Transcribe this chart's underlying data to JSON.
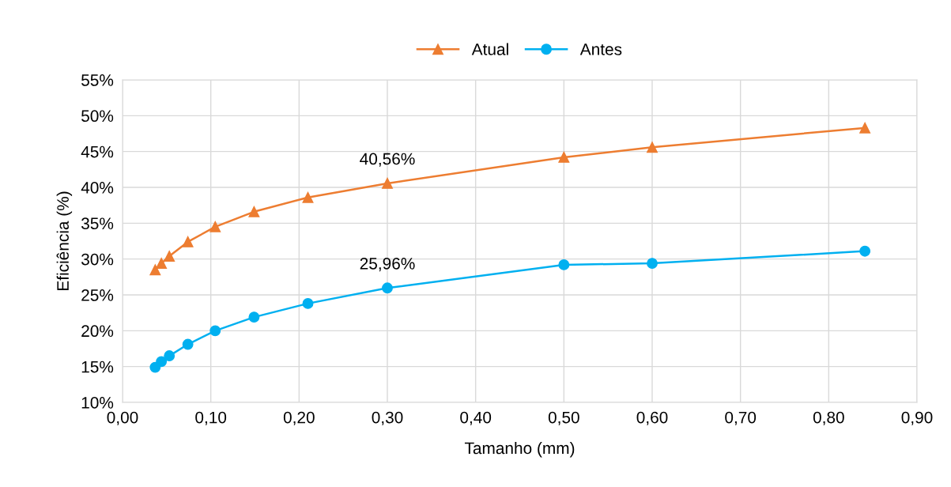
{
  "chart_data": {
    "type": "line",
    "xlabel": "Tamanho (mm)",
    "ylabel": "Eficiência (%)",
    "series": [
      {
        "name": "Atual",
        "color": "#ed7d31",
        "marker": "triangle",
        "x": [
          0.037,
          0.044,
          0.053,
          0.074,
          0.105,
          0.149,
          0.21,
          0.3,
          0.5,
          0.6,
          0.841
        ],
        "values": [
          28.5,
          29.4,
          30.4,
          32.4,
          34.5,
          36.6,
          38.6,
          40.56,
          44.2,
          45.6,
          48.3
        ]
      },
      {
        "name": "Antes",
        "color": "#00b0f0",
        "marker": "circle",
        "x": [
          0.037,
          0.044,
          0.053,
          0.074,
          0.105,
          0.149,
          0.21,
          0.3,
          0.5,
          0.6,
          0.841
        ],
        "values": [
          14.9,
          15.7,
          16.5,
          18.1,
          20.0,
          21.9,
          23.8,
          25.96,
          29.2,
          29.4,
          31.1
        ]
      }
    ],
    "annotations": [
      {
        "text": "40,56%",
        "x": 0.3,
        "y": 40.56
      },
      {
        "text": "25,96%",
        "x": 0.3,
        "y": 25.96
      }
    ],
    "xlim": [
      0,
      0.9
    ],
    "xticks": [
      {
        "value": 0,
        "label": "0,00"
      },
      {
        "value": 0.1,
        "label": "0,10"
      },
      {
        "value": 0.2,
        "label": "0,20"
      },
      {
        "value": 0.3,
        "label": "0,30"
      },
      {
        "value": 0.4,
        "label": "0,40"
      },
      {
        "value": 0.5,
        "label": "0,50"
      },
      {
        "value": 0.6,
        "label": "0,60"
      },
      {
        "value": 0.7,
        "label": "0,70"
      },
      {
        "value": 0.8,
        "label": "0,80"
      },
      {
        "value": 0.9,
        "label": "0,90"
      }
    ],
    "ylim": [
      10,
      55
    ],
    "yticks": [
      {
        "value": 10,
        "label": "10%"
      },
      {
        "value": 15,
        "label": "15%"
      },
      {
        "value": 20,
        "label": "20%"
      },
      {
        "value": 25,
        "label": "25%"
      },
      {
        "value": 30,
        "label": "30%"
      },
      {
        "value": 35,
        "label": "35%"
      },
      {
        "value": 40,
        "label": "40%"
      },
      {
        "value": 45,
        "label": "45%"
      },
      {
        "value": 50,
        "label": "50%"
      },
      {
        "value": 55,
        "label": "55%"
      }
    ],
    "grid": true,
    "legend": "top",
    "line_style": "solid"
  }
}
